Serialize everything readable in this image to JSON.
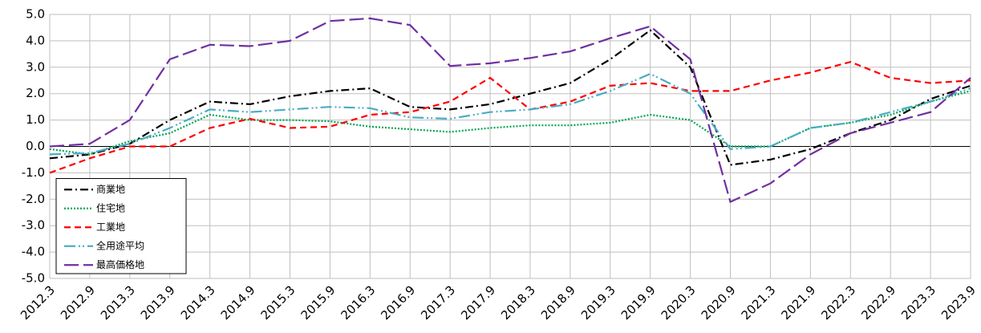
{
  "chart_data": {
    "type": "line",
    "categories": [
      "2012.3",
      "2012.9",
      "2013.3",
      "2013.9",
      "2014.3",
      "2014.9",
      "2015.3",
      "2015.9",
      "2016.3",
      "2016.9",
      "2017.3",
      "2017.9",
      "2018.3",
      "2018.9",
      "2019.3",
      "2019.9",
      "2020.3",
      "2020.9",
      "2021.3",
      "2021.9",
      "2022.3",
      "2022.9",
      "2023.3",
      "2023.9"
    ],
    "series": [
      {
        "name": "商業地",
        "color": "#000000",
        "style": "dashdot",
        "values": [
          -0.45,
          -0.3,
          0.1,
          1.0,
          1.7,
          1.6,
          1.9,
          2.1,
          2.2,
          1.5,
          1.4,
          1.6,
          2.0,
          2.4,
          3.3,
          4.4,
          3.0,
          -0.7,
          -0.5,
          -0.1,
          0.5,
          1.0,
          1.8,
          2.3
        ]
      },
      {
        "name": "住宅地",
        "color": "#00a651",
        "style": "dotted",
        "values": [
          -0.1,
          -0.3,
          0.2,
          0.5,
          1.2,
          1.0,
          1.0,
          0.95,
          0.75,
          0.65,
          0.55,
          0.7,
          0.8,
          0.8,
          0.9,
          1.2,
          1.0,
          0.0,
          0.0,
          0.7,
          0.9,
          1.2,
          1.7,
          2.1
        ]
      },
      {
        "name": "工業地",
        "color": "#ff0000",
        "style": "dashed",
        "values": [
          -1.0,
          -0.45,
          0.0,
          0.0,
          0.7,
          1.05,
          0.7,
          0.75,
          1.2,
          1.3,
          1.7,
          2.6,
          1.4,
          1.7,
          2.3,
          2.4,
          2.1,
          2.1,
          2.5,
          2.8,
          3.2,
          2.6,
          2.4,
          2.5
        ]
      },
      {
        "name": "全用途平均",
        "color": "#4bacc6",
        "style": "dashdotdot",
        "values": [
          -0.3,
          -0.25,
          0.1,
          0.7,
          1.4,
          1.3,
          1.4,
          1.5,
          1.45,
          1.1,
          1.05,
          1.3,
          1.4,
          1.6,
          2.1,
          2.75,
          2.0,
          -0.1,
          0.0,
          0.7,
          0.9,
          1.3,
          1.7,
          2.2
        ]
      },
      {
        "name": "最高価格地",
        "color": "#7030a0",
        "style": "longdash",
        "values": [
          0.0,
          0.1,
          1.0,
          3.3,
          3.85,
          3.8,
          4.0,
          4.75,
          4.85,
          4.6,
          3.05,
          3.15,
          3.35,
          3.6,
          4.1,
          4.55,
          3.3,
          -2.1,
          -1.4,
          -0.3,
          0.5,
          0.9,
          1.3,
          2.6
        ]
      }
    ],
    "ylim": [
      -5,
      5
    ],
    "yticks": [
      {
        "value": 5,
        "label": "5.0"
      },
      {
        "value": 4,
        "label": "4.0"
      },
      {
        "value": 3,
        "label": "3.0"
      },
      {
        "value": 2,
        "label": "2.0"
      },
      {
        "value": 1,
        "label": "1.0"
      },
      {
        "value": 0,
        "label": "0.0"
      },
      {
        "value": -1,
        "label": "-1.0"
      },
      {
        "value": -2,
        "label": "-2.0"
      },
      {
        "value": -3,
        "label": "-3.0"
      },
      {
        "value": -4,
        "label": "-4.0"
      },
      {
        "value": -5,
        "label": "-5.0"
      }
    ],
    "grid": true,
    "legend": "lower left"
  }
}
